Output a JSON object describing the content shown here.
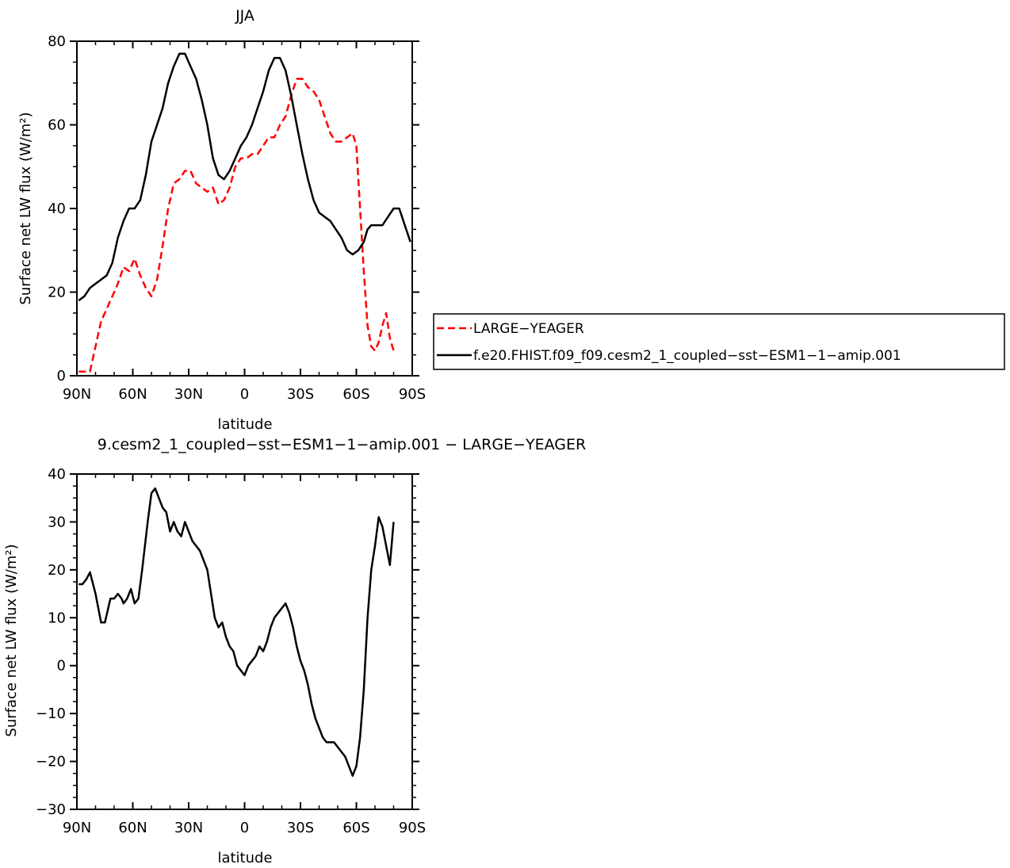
{
  "chart_data": [
    {
      "type": "line",
      "title": "JJA",
      "xlabel": "latitude",
      "ylabel": "Surface net LW flux (W/m²)",
      "xlim": [
        90,
        -90
      ],
      "ylim": [
        0,
        80
      ],
      "x_ticks": [
        90,
        60,
        30,
        0,
        -30,
        -60,
        -90
      ],
      "x_tick_labels": [
        "90N",
        "60N",
        "30N",
        "0",
        "30S",
        "60S",
        "90S"
      ],
      "y_ticks": [
        0,
        20,
        40,
        60,
        80
      ],
      "y_tick_labels": [
        "0",
        "20",
        "40",
        "60",
        "80"
      ],
      "legend": "right",
      "series": [
        {
          "name": "LARGE−YEAGER",
          "color": "#ff0000",
          "dash": "dashed",
          "x": [
            89,
            86,
            83,
            80,
            77,
            74,
            71,
            68,
            65,
            62,
            59,
            56,
            53,
            50,
            47,
            44,
            41,
            38,
            35,
            32,
            29,
            26,
            23,
            20,
            17,
            14,
            11,
            8,
            5,
            2,
            -1,
            -4,
            -7,
            -10,
            -13,
            -16,
            -19,
            -22,
            -25,
            -28,
            -31,
            -34,
            -37,
            -40,
            -43,
            -46,
            -49,
            -52,
            -55,
            -58,
            -60,
            -62,
            -64,
            -66,
            -68,
            -70,
            -72,
            -74,
            -76,
            -78,
            -80
          ],
          "y": [
            1,
            1,
            1,
            7,
            13,
            16,
            19,
            22,
            26,
            25,
            28,
            24,
            21,
            19,
            23,
            31,
            40,
            46,
            47,
            49,
            49,
            46,
            45,
            44,
            45,
            41,
            42,
            45,
            50,
            52,
            52,
            53,
            53,
            55,
            57,
            57,
            60,
            62,
            67,
            71,
            71,
            69,
            68,
            66,
            62,
            58,
            56,
            56,
            57,
            58,
            55,
            40,
            25,
            12,
            7,
            6,
            8,
            12,
            15,
            9,
            6
          ]
        },
        {
          "name": "f.e20.FHIST.f09_f09.cesm2_1_coupled−sst−ESM1−1−amip.001",
          "color": "#000000",
          "dash": "solid",
          "x": [
            89,
            86,
            83,
            80,
            77,
            74,
            71,
            68,
            65,
            62,
            59,
            56,
            53,
            50,
            47,
            44,
            41,
            38,
            35,
            32,
            29,
            26,
            23,
            20,
            17,
            14,
            11,
            8,
            5,
            2,
            -1,
            -4,
            -7,
            -10,
            -13,
            -16,
            -19,
            -22,
            -25,
            -28,
            -31,
            -34,
            -37,
            -40,
            -43,
            -46,
            -49,
            -52,
            -55,
            -58,
            -61,
            -64,
            -66,
            -68,
            -71,
            -74,
            -77,
            -80,
            -83,
            -86,
            -89
          ],
          "y": [
            18,
            19,
            21,
            22,
            23,
            24,
            27,
            33,
            37,
            40,
            40,
            42,
            48,
            56,
            60,
            64,
            70,
            74,
            77,
            77,
            74,
            71,
            66,
            60,
            52,
            48,
            47,
            49,
            52,
            55,
            57,
            60,
            64,
            68,
            73,
            76,
            76,
            73,
            67,
            60,
            53,
            47,
            42,
            39,
            38,
            37,
            35,
            33,
            30,
            29,
            30,
            32,
            35,
            36,
            36,
            36,
            38,
            40,
            40,
            36,
            32
          ]
        }
      ]
    },
    {
      "type": "line",
      "title": "9.cesm2_1_coupled−sst−ESM1−1−amip.001 − LARGE−YEAGER",
      "xlabel": "latitude",
      "ylabel": "Surface net LW flux (W/m²)",
      "xlim": [
        90,
        -90
      ],
      "ylim": [
        -30,
        40
      ],
      "x_ticks": [
        90,
        60,
        30,
        0,
        -30,
        -60,
        -90
      ],
      "x_tick_labels": [
        "90N",
        "60N",
        "30N",
        "0",
        "30S",
        "60S",
        "90S"
      ],
      "y_ticks": [
        -30,
        -20,
        -10,
        0,
        10,
        20,
        30,
        40
      ],
      "y_tick_labels": [
        "−30",
        "−20",
        "−10",
        "0",
        "10",
        "20",
        "30",
        "40"
      ],
      "series": [
        {
          "name": "",
          "color": "#000000",
          "dash": "solid",
          "x": [
            89,
            87,
            85,
            83,
            80,
            77,
            75,
            72,
            70,
            68,
            66,
            65,
            63,
            61,
            59,
            57,
            55,
            52,
            50,
            48,
            46,
            44,
            42,
            40,
            38,
            36,
            34,
            32,
            30,
            28,
            26,
            24,
            22,
            20,
            18,
            16,
            14,
            12,
            10,
            8,
            6,
            4,
            2,
            0,
            -2,
            -4,
            -6,
            -8,
            -10,
            -12,
            -14,
            -16,
            -18,
            -20,
            -22,
            -24,
            -26,
            -28,
            -30,
            -32,
            -34,
            -36,
            -38,
            -40,
            -42,
            -44,
            -46,
            -48,
            -50,
            -52,
            -54,
            -56,
            -58,
            -60,
            -62,
            -64,
            -66,
            -68,
            -70,
            -72,
            -74,
            -76,
            -78,
            -80
          ],
          "y": [
            17,
            17,
            18,
            19.5,
            15,
            9,
            9,
            14,
            14,
            15,
            14,
            13,
            14,
            16,
            13,
            14,
            20,
            30,
            36,
            37,
            35,
            33,
            32,
            28,
            30,
            28,
            27,
            30,
            28,
            26,
            25,
            24,
            22,
            20,
            15,
            10,
            8,
            9,
            6,
            4,
            3,
            0,
            -1,
            -2,
            0,
            1,
            2,
            4,
            3,
            5,
            8,
            10,
            11,
            12,
            13,
            11,
            8,
            4,
            1,
            -1,
            -4,
            -8,
            -11,
            -13,
            -15,
            -16,
            -16,
            -16,
            -17,
            -18,
            -19,
            -21,
            -23,
            -21,
            -15,
            -5,
            10,
            20,
            25,
            31,
            29,
            25,
            21,
            30
          ]
        }
      ]
    }
  ]
}
